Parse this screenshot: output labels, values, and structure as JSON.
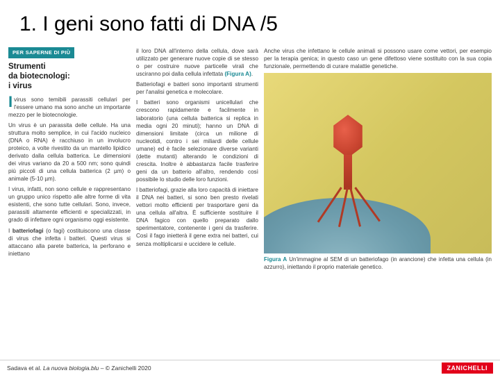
{
  "title": "1. I geni sono fatti di DNA /5",
  "badge": "PER SAPERNE DI PIÙ",
  "box_title_1": "Strumenti",
  "box_title_2": "da biotecnologi:",
  "box_title_3": "i virus",
  "col1": {
    "p1": "virus sono temibili parassiti cellulari per l'essere umano ma sono anche un importante mezzo per le biotecnologie.",
    "p2a": "Un virus è un parassita delle cellule. Ha una struttura molto semplice, in cui l'acido nucleico (DNA o RNA) è racchiuso in un involucro proteico, a volte rivestito da un mantello lipidico derivato dalla cellula batterica. Le dimensioni dei virus variano da 20 a 500 nm; sono quindi più piccoli di una cellula batterica (2 µm) o animale (5-10 µm).",
    "p2b": "I virus, infatti, non sono cellule e rappresentano un gruppo unico rispetto alle altre forme di vita esistenti, che sono tutte cellulari. Sono, invece, parassiti altamente efficienti e specializzati, in grado di infettare ogni organismo oggi esistente.",
    "p3a": "I ",
    "p3b": "batteriofagi",
    "p3c": " (o fagi) costituiscono una classe di virus che infetta i batteri. Questi virus si attaccano alla parete batterica, la perforano e iniettano"
  },
  "col2": {
    "p1a": "il loro DNA all'interno della cellula, dove sarà utilizzato per generare nuove copie di se stesso o per costruire nuove particelle virali che usciranno poi dalla cellula infettata ",
    "p1ref": "(Figura A)",
    "p1b": ".",
    "p2": "Batteriofagi e batteri sono importanti strumenti per l'analisi genetica e molecolare.",
    "p3": "I batteri sono organismi unicellulari che crescono rapidamente e facilmente in laboratorio (una cellula batterica si replica in media ogni 20 minuti); hanno un DNA di dimensioni limitate (circa un milione di nucleotidi, contro i sei miliardi delle cellule umane) ed è facile selezionare diverse varianti (dette mutanti) alterando le condizioni di crescita. Inoltre è abbastanza facile trasferire geni da un batterio all'altro, rendendo così possibile lo studio delle loro funzioni.",
    "p4": "I batteriofagi, grazie alla loro capacità di iniettare il DNA nei batteri, si sono ben presto rivelati vettori molto efficienti per trasportare geni da una cellula all'altra. È sufficiente sostituire il DNA fagico con quello preparato dallo sperimentatore, contenente i geni da trasferire. Così il fago inietterà il gene extra nei batteri, cui senza moltiplicarsi e uccidere le cellule."
  },
  "col3": {
    "p1": "Anche virus che infettano le cellule animali si possono usare come vettori, per esempio per la terapia genica; in questo caso un gene difettoso viene sostituito con la sua copia funzionale, permettendo di curare malattie genetiche.",
    "caption_a": "Figura A",
    "caption_b": " Un'immagine al SEM di un batteriofago (in arancione) che infetta una cellula (in azzurro), iniettando il proprio materiale genetico."
  },
  "footer": {
    "author": "Sadava et al. ",
    "title_italic": "La nuova biologia.blu",
    "suffix": " – © Zanichelli 2020",
    "logo": "ZANICHELLI"
  },
  "colors": {
    "badge_bg": "#1b8a94",
    "logo_bg": "#e2001a"
  }
}
